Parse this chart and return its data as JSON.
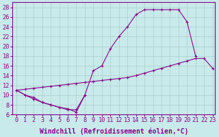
{
  "background_color": "#c8eaea",
  "line_color": "#880088",
  "grid_color": "#aacccc",
  "xlabel": "Windchill (Refroidissement éolien,°C)",
  "xlabel_fontsize": 7.0,
  "tick_fontsize": 6.2,
  "xlim": [
    -0.5,
    23.3
  ],
  "ylim": [
    6,
    29
  ],
  "yticks": [
    6,
    8,
    10,
    12,
    14,
    16,
    18,
    20,
    22,
    24,
    26,
    28
  ],
  "xticks": [
    0,
    1,
    2,
    3,
    4,
    5,
    6,
    7,
    8,
    9,
    10,
    11,
    12,
    13,
    14,
    15,
    16,
    17,
    18,
    19,
    20,
    21,
    22,
    23
  ],
  "curve1_x": [
    0,
    1,
    2,
    3,
    4,
    5,
    6,
    7,
    8,
    9,
    10,
    11,
    12,
    13,
    14,
    15,
    16,
    17,
    18,
    19,
    20,
    21
  ],
  "curve1_y": [
    11,
    10,
    9.5,
    8.5,
    8,
    7.5,
    7,
    7,
    10,
    15,
    16,
    19.5,
    22,
    24,
    26.5,
    27.5,
    27.5,
    27.5,
    27.5,
    27.5,
    25,
    18
  ],
  "curve2_x": [
    0,
    1,
    2,
    3,
    4,
    5,
    6,
    7,
    8,
    9,
    10,
    11,
    12,
    13,
    14,
    15,
    16,
    17,
    18,
    19,
    20,
    21,
    22,
    23
  ],
  "curve2_y": [
    11,
    11.2,
    11.4,
    11.6,
    11.8,
    12,
    12.2,
    12.4,
    12.6,
    12.8,
    13,
    13.2,
    13.4,
    13.6,
    14,
    14.5,
    15,
    15.5,
    16,
    16.5,
    17,
    17.5,
    17.5,
    15.5
  ],
  "curve3_x": [
    0,
    1,
    2,
    3,
    4,
    5,
    6,
    7,
    8
  ],
  "curve3_y": [
    11,
    10,
    9.2,
    8.5,
    8,
    7.5,
    7.2,
    6.5,
    10
  ]
}
